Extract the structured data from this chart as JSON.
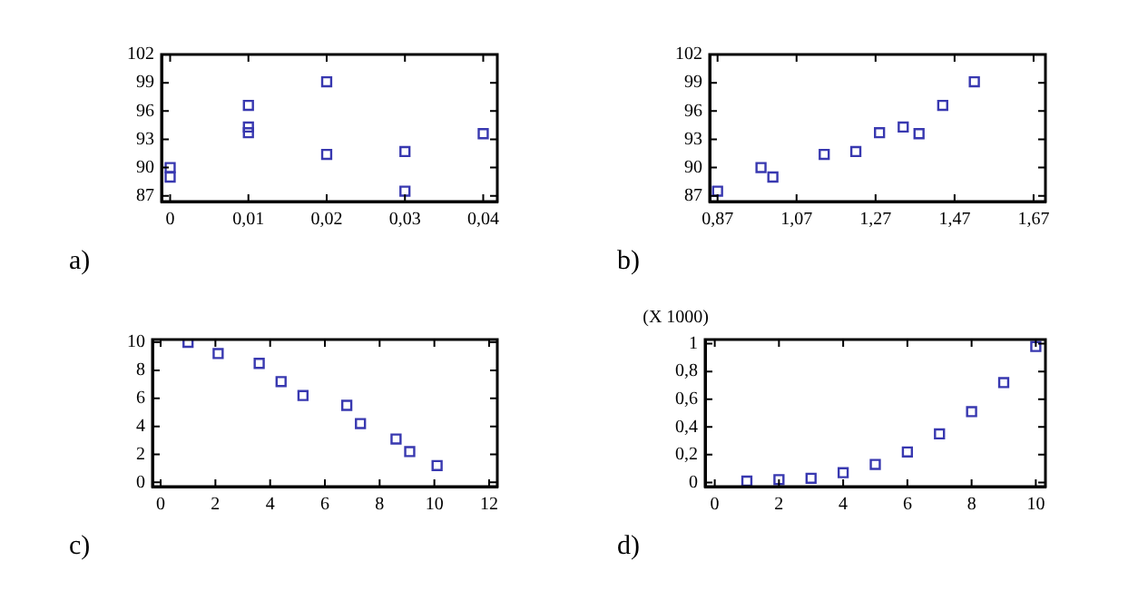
{
  "chart_data": [
    {
      "type": "scatter",
      "annotations": [
        "a)"
      ],
      "marker": "square",
      "grid": false,
      "series": [
        {
          "color": "#3838b0",
          "x": [
            0,
            0,
            0.01,
            0.01,
            0.01,
            0.02,
            0.02,
            0.03,
            0.03,
            0.04
          ],
          "values": [
            90,
            89,
            96.6,
            94.3,
            93.7,
            99.1,
            91.4,
            91.7,
            87.5,
            93.6
          ]
        }
      ],
      "xlim": [
        -0.0011,
        0.0418
      ],
      "xticks": [
        0,
        {
          "value": 0.01,
          "label": "0,01"
        },
        {
          "value": 0.02,
          "label": "0,02"
        },
        {
          "value": 0.03,
          "label": "0,03"
        },
        {
          "value": 0.04,
          "label": "0,04"
        }
      ],
      "ylim": [
        86.4,
        102
      ],
      "yticks": [
        87,
        90,
        93,
        96,
        99,
        102
      ]
    },
    {
      "type": "scatter",
      "annotations": [
        "b)"
      ],
      "marker": "square",
      "grid": false,
      "series": [
        {
          "color": "#3838b0",
          "x": [
            0.87,
            0.98,
            1.01,
            1.14,
            1.22,
            1.28,
            1.34,
            1.38,
            1.44,
            1.52
          ],
          "values": [
            87.5,
            90,
            89,
            91.4,
            91.7,
            93.7,
            94.3,
            93.6,
            96.6,
            99.1
          ]
        }
      ],
      "xlim": [
        0.85,
        1.7
      ],
      "xticks": [
        {
          "value": 0.87,
          "label": "0,87"
        },
        {
          "value": 1.07,
          "label": "1,07"
        },
        {
          "value": 1.27,
          "label": "1,27"
        },
        {
          "value": 1.47,
          "label": "1,47"
        },
        {
          "value": 1.67,
          "label": "1,67"
        }
      ],
      "ylim": [
        86.4,
        102
      ],
      "yticks": [
        87,
        90,
        93,
        96,
        99,
        102
      ]
    },
    {
      "type": "scatter",
      "annotations": [
        "c)"
      ],
      "marker": "square",
      "grid": false,
      "series": [
        {
          "color": "#3838b0",
          "x": [
            1,
            2.1,
            3.6,
            4.4,
            5.2,
            6.8,
            7.3,
            8.6,
            9.1,
            10.1
          ],
          "values": [
            10,
            9.2,
            8.5,
            7.2,
            6.2,
            5.5,
            4.2,
            3.1,
            2.2,
            1.2
          ]
        }
      ],
      "xlim": [
        -0.3,
        12.3
      ],
      "xticks": [
        0,
        2,
        4,
        6,
        8,
        10,
        12
      ],
      "ylim": [
        -0.3,
        10.2
      ],
      "yticks": [
        0,
        2,
        4,
        6,
        8,
        10
      ]
    },
    {
      "type": "scatter",
      "annotations": [
        "d)"
      ],
      "ylabel": "(X 1000)",
      "marker": "square",
      "grid": false,
      "series": [
        {
          "color": "#3838b0",
          "x": [
            1,
            2,
            3,
            4,
            5,
            6,
            7,
            8,
            9,
            10
          ],
          "values": [
            0.01,
            0.02,
            0.03,
            0.07,
            0.13,
            0.22,
            0.35,
            0.51,
            0.72,
            0.98
          ]
        }
      ],
      "xlim": [
        -0.3,
        10.3
      ],
      "xticks": [
        0,
        2,
        4,
        6,
        8,
        10
      ],
      "ylim": [
        -0.03,
        1.03
      ],
      "yticks": [
        0,
        {
          "value": 0.2,
          "label": "0,2"
        },
        {
          "value": 0.4,
          "label": "0,4"
        },
        {
          "value": 0.6,
          "label": "0,6"
        },
        {
          "value": 0.8,
          "label": "0,8"
        },
        1
      ]
    }
  ]
}
